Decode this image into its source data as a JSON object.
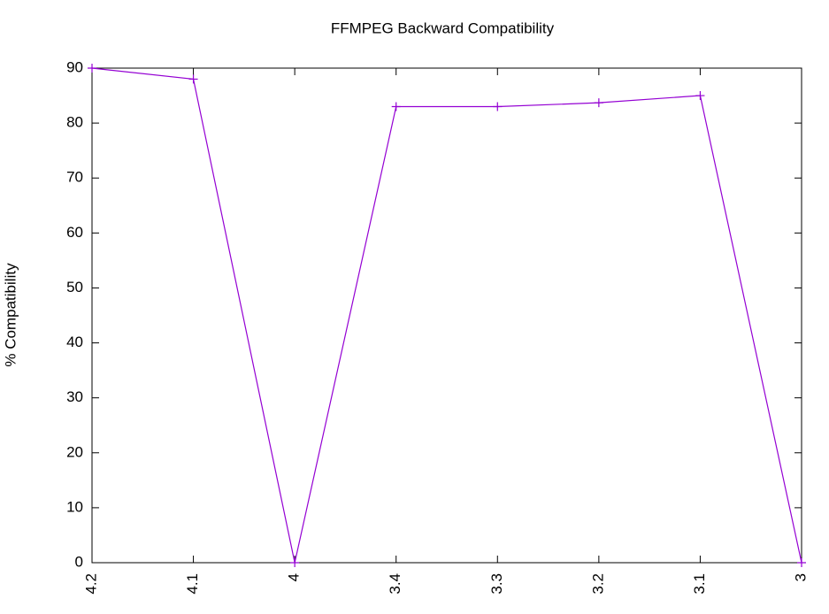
{
  "chart_data": {
    "type": "line",
    "title": "FFMPEG Backward Compatibility",
    "y_label": "% Compatibility",
    "categories": [
      "4.2",
      "4.1",
      "4",
      "3.4",
      "3.3",
      "3.2",
      "3.1",
      "3"
    ],
    "series": [
      {
        "name": "Compatibility",
        "color": "#9400d3",
        "values": [
          90,
          88,
          0,
          83,
          83,
          83.7,
          85,
          0
        ]
      }
    ],
    "ylim": [
      0,
      90
    ],
    "yticks": [
      0,
      10,
      20,
      30,
      40,
      50,
      60,
      70,
      80,
      90
    ]
  }
}
